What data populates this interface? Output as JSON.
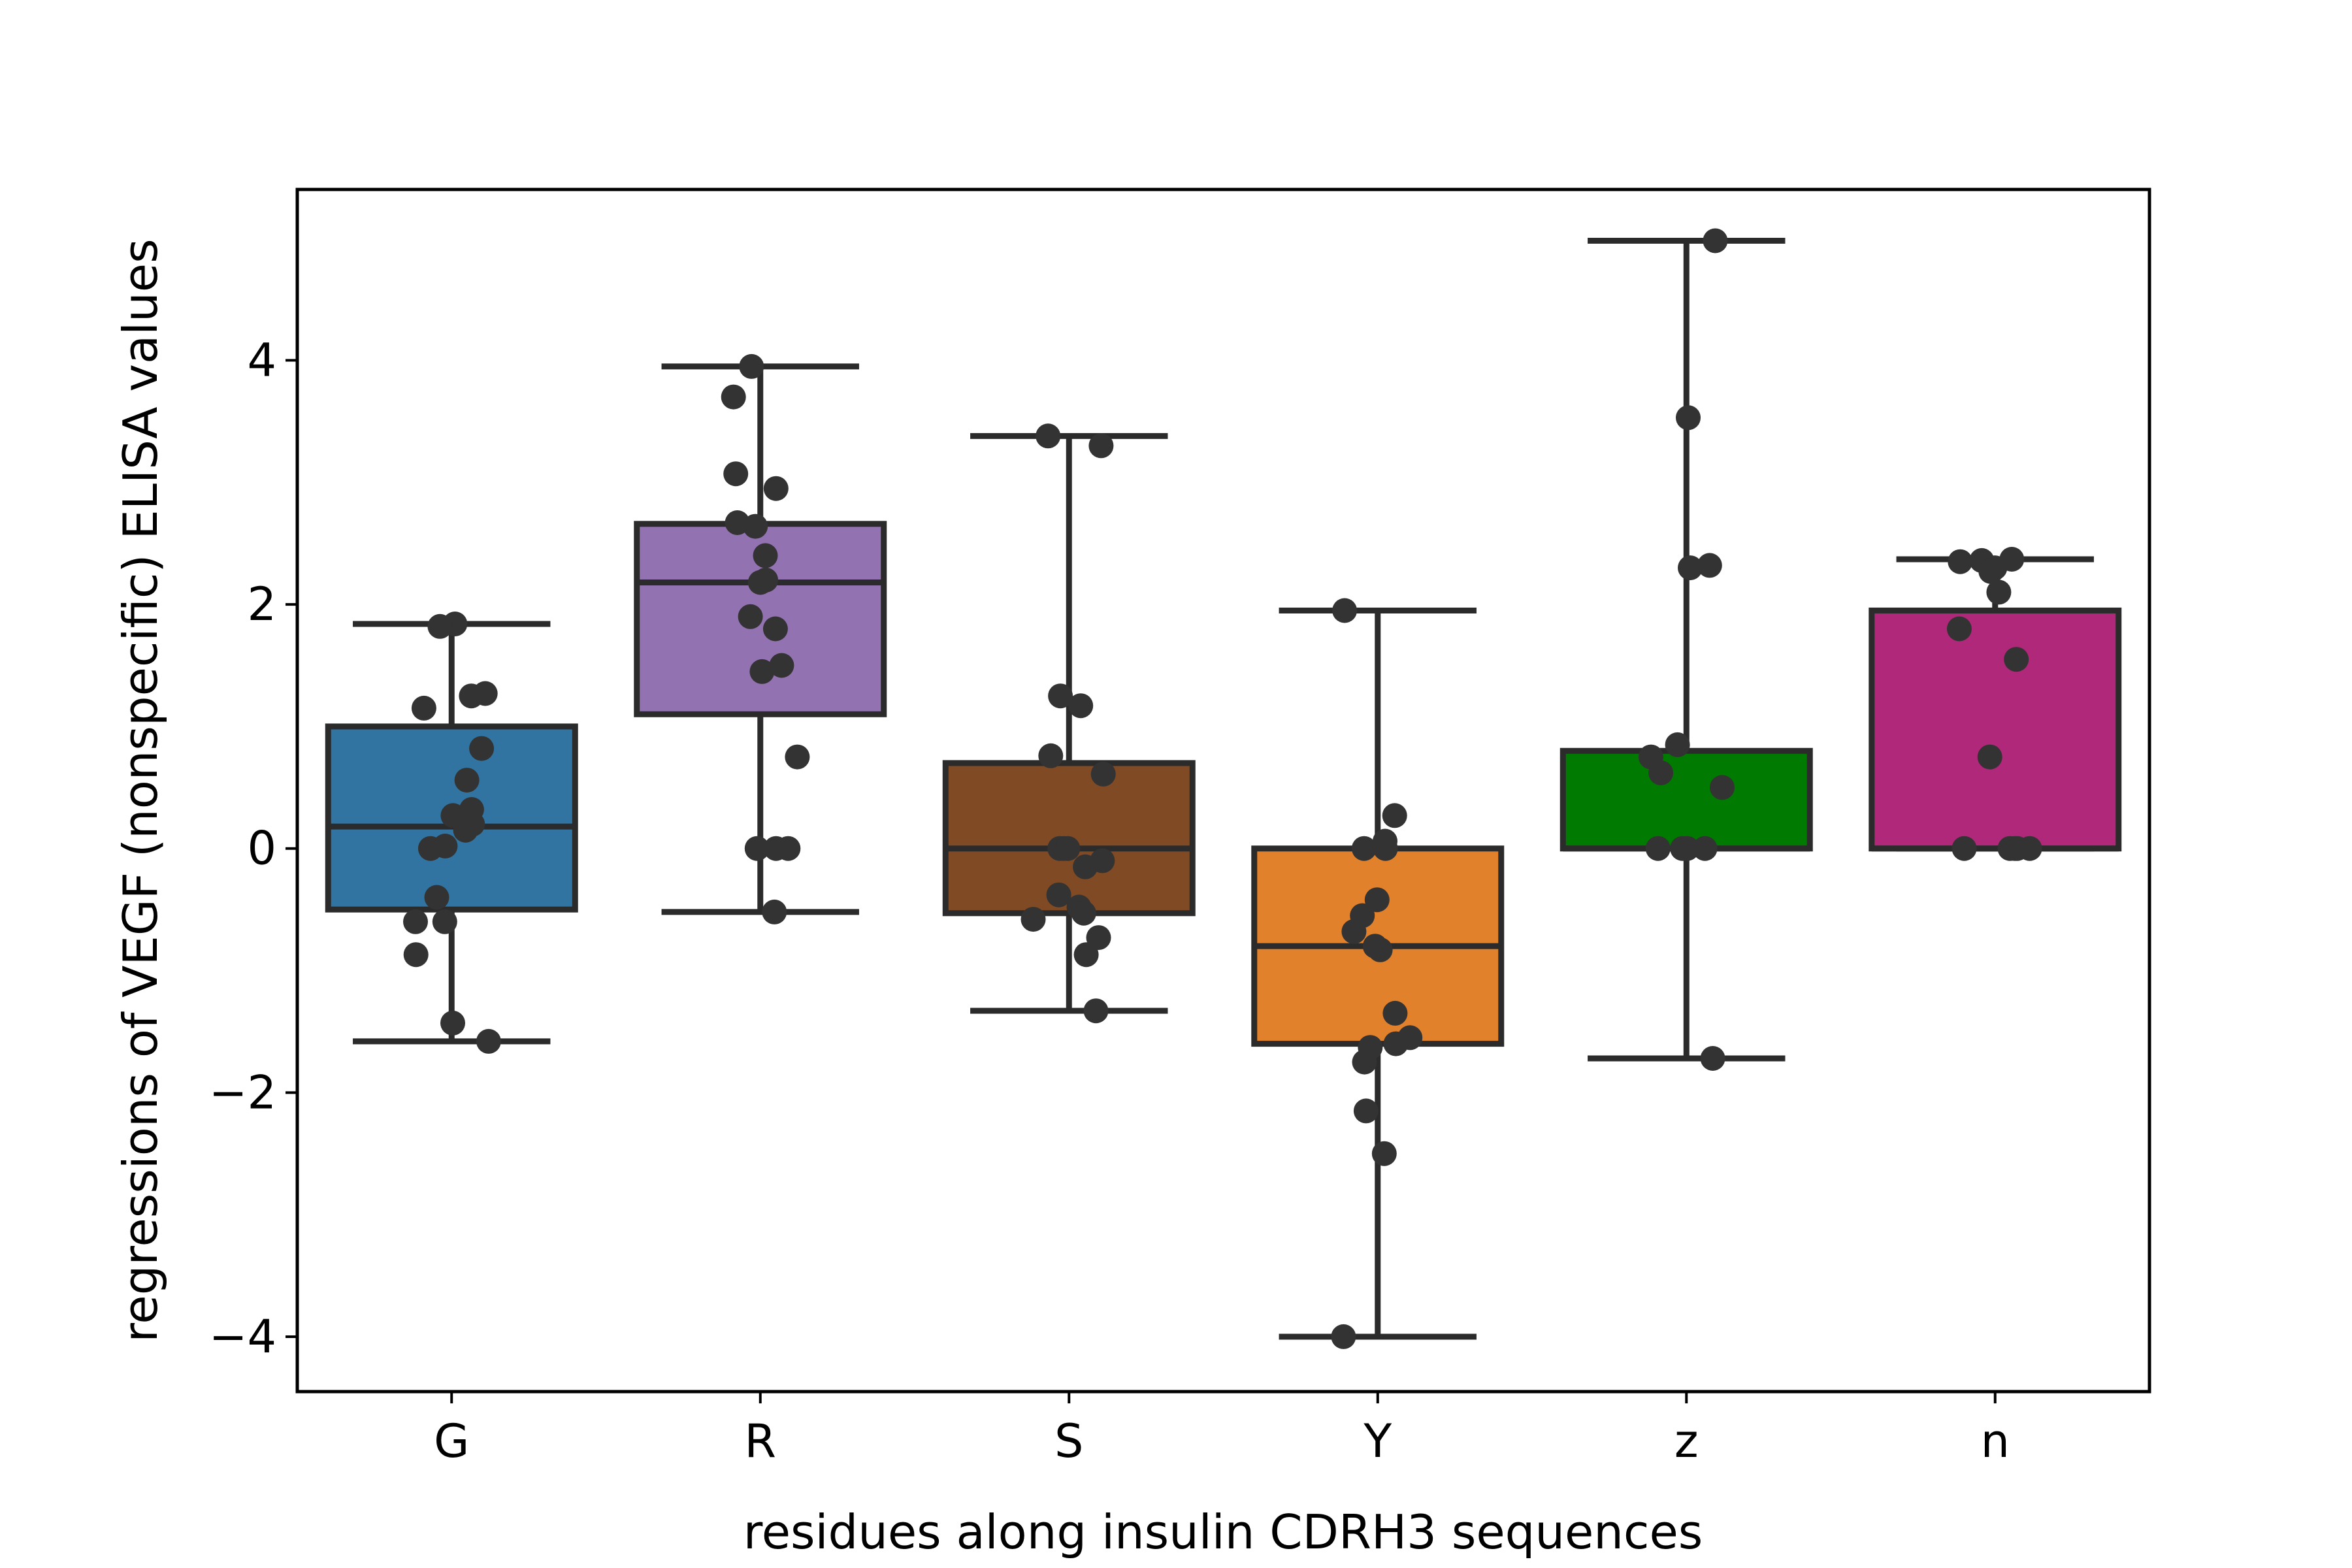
{
  "chart_data": {
    "type": "box",
    "title": "",
    "xlabel": "residues along insulin CDRH3 sequences",
    "ylabel": "regressions of VEGF (nonspecific) ELISA values",
    "ylim": [
      -4.45,
      5.4
    ],
    "y_ticks": [
      -4,
      -2,
      0,
      2,
      4
    ],
    "y_tick_labels": [
      "−4",
      "−2",
      "0",
      "2",
      "4"
    ],
    "categories": [
      "G",
      "R",
      "S",
      "Y",
      "z",
      "n"
    ],
    "grid": false,
    "legend": "none",
    "boxes": [
      {
        "category": "G",
        "color": "#3274a1",
        "whisker_low": -1.58,
        "q1": -0.5,
        "median": 0.18,
        "q3": 1.0,
        "whisker_high": 1.84,
        "points": [
          1.84,
          1.82,
          1.27,
          1.25,
          1.15,
          0.82,
          0.56,
          0.32,
          0.27,
          0.2,
          0.15,
          0.0,
          0.02,
          -0.4,
          -0.6,
          -0.6,
          -0.87,
          -1.43,
          -1.58
        ]
      },
      {
        "category": "R",
        "color": "#9372b2",
        "whisker_low": -0.52,
        "q1": 1.1,
        "median": 2.18,
        "q3": 2.66,
        "whisker_high": 3.95,
        "points": [
          3.95,
          3.7,
          3.07,
          2.95,
          2.67,
          2.64,
          2.4,
          2.2,
          2.18,
          1.9,
          1.8,
          1.5,
          1.45,
          0.75,
          0.0,
          0.0,
          0.0,
          -0.52
        ]
      },
      {
        "category": "S",
        "color": "#7f4a24",
        "whisker_low": -1.33,
        "q1": -0.53,
        "median": 0.0,
        "q3": 0.7,
        "whisker_high": 3.38,
        "points": [
          3.38,
          3.3,
          1.25,
          1.17,
          0.76,
          0.61,
          0.0,
          0.0,
          0.0,
          -0.1,
          -0.15,
          -0.38,
          -0.48,
          -0.53,
          -0.58,
          -0.73,
          -0.87,
          -1.33
        ]
      },
      {
        "category": "Y",
        "color": "#e1812c",
        "whisker_low": -4.0,
        "q1": -1.6,
        "median": -0.8,
        "q3": 0.0,
        "whisker_high": 1.95,
        "points": [
          1.95,
          0.27,
          0.06,
          0.0,
          0.0,
          -0.42,
          -0.55,
          -0.68,
          -0.8,
          -0.83,
          -1.35,
          -1.55,
          -1.6,
          -1.63,
          -1.75,
          -2.15,
          -2.5,
          -4.0
        ]
      },
      {
        "category": "z",
        "color": "#007a00",
        "whisker_low": -1.72,
        "q1": 0.0,
        "median": 0.0,
        "q3": 0.8,
        "whisker_high": 4.98,
        "points": [
          4.98,
          3.53,
          2.32,
          2.3,
          0.85,
          0.75,
          0.62,
          0.5,
          0.0,
          0.0,
          0.0,
          0.0,
          -1.72
        ]
      },
      {
        "category": "n",
        "color": "#b0287a",
        "whisker_low": 0.0,
        "q1": 0.0,
        "median": 0.0,
        "q3": 1.95,
        "whisker_high": 2.37,
        "points": [
          2.37,
          2.36,
          2.35,
          2.3,
          2.27,
          2.1,
          1.8,
          1.55,
          0.75,
          0.0,
          0.0,
          0.0,
          0.0,
          0.0
        ]
      }
    ]
  }
}
